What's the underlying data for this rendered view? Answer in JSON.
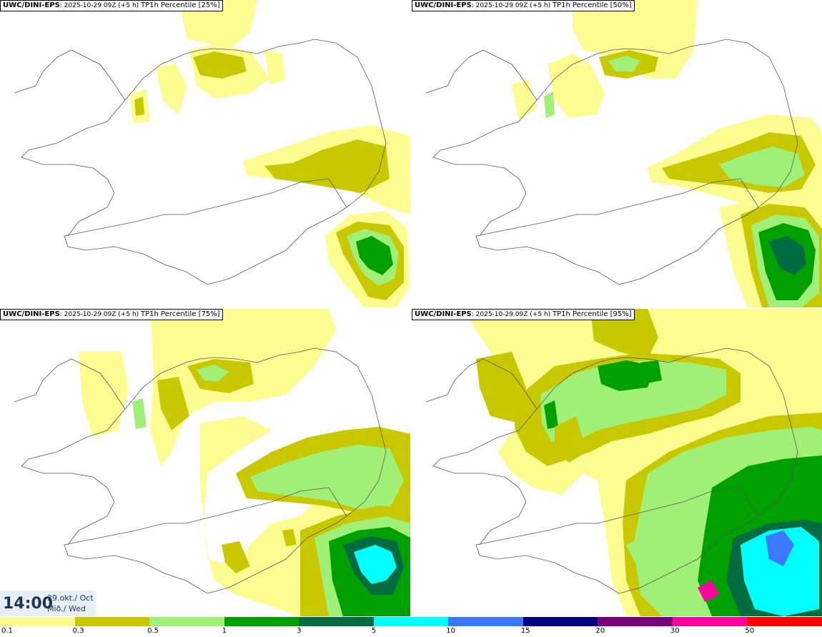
{
  "panels": [
    {
      "model": "UWC/DINI-EPS",
      "run": ": 2025-10-29 09Z (+5 h)",
      "field": "TP1h Percentile [25%]"
    },
    {
      "model": "UWC/DINI-EPS",
      "run": ": 2025-10-29 09Z (+5 h)",
      "field": "TP1h Percentile [50%]"
    },
    {
      "model": "UWC/DINI-EPS",
      "run": ": 2025-10-29 09Z (+5 h)",
      "field": "TP1h Percentile [75%]"
    },
    {
      "model": "UWC/DINI-EPS",
      "run": ": 2025-10-29 09Z (+5 h)",
      "field": "TP1h Percentile [95%]"
    }
  ],
  "valid_time": {
    "time": "14:00",
    "date": "29.okt./ Oct",
    "weekday": "Mið./ Wed"
  },
  "legend": {
    "colors": [
      "#fdfc91",
      "#c8c800",
      "#a0f078",
      "#00a000",
      "#006c40",
      "#00ffff",
      "#3c78ff",
      "#000080",
      "#780078",
      "#ff00a0",
      "#ff0000"
    ],
    "ticks": [
      "0.1",
      "0.3",
      "0.5",
      "1",
      "3",
      "5",
      "10",
      "15",
      "20",
      "30",
      "50"
    ]
  }
}
